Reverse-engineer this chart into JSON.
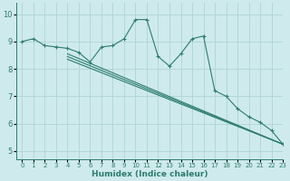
{
  "xlabel": "Humidex (Indice chaleur)",
  "xlim": [
    -0.5,
    23
  ],
  "ylim": [
    4.7,
    10.4
  ],
  "bg_color": "#ceeaec",
  "grid_color": "#aed4d6",
  "line_color": "#2d7c6e",
  "jagged_line": {
    "x": [
      0,
      1,
      2,
      3,
      4,
      5,
      6,
      7,
      8,
      9,
      10,
      11,
      12,
      13,
      14,
      15,
      16,
      17,
      18,
      19,
      20,
      21,
      22,
      23
    ],
    "y": [
      9.0,
      9.1,
      8.85,
      8.8,
      8.75,
      8.6,
      8.25,
      8.8,
      8.85,
      9.1,
      9.8,
      9.8,
      8.45,
      8.1,
      8.55,
      9.1,
      9.2,
      7.2,
      7.0,
      6.55,
      6.25,
      6.05,
      5.75,
      5.25
    ]
  },
  "smooth_lines": [
    {
      "x": [
        4,
        23
      ],
      "y": [
        8.55,
        5.25
      ]
    },
    {
      "x": [
        4,
        23
      ],
      "y": [
        8.45,
        5.25
      ]
    },
    {
      "x": [
        4,
        23
      ],
      "y": [
        8.35,
        5.25
      ]
    }
  ],
  "xticks": [
    0,
    1,
    2,
    3,
    4,
    5,
    6,
    7,
    8,
    9,
    10,
    11,
    12,
    13,
    14,
    15,
    16,
    17,
    18,
    19,
    20,
    21,
    22,
    23
  ],
  "yticks": [
    5,
    6,
    7,
    8,
    9,
    10
  ]
}
